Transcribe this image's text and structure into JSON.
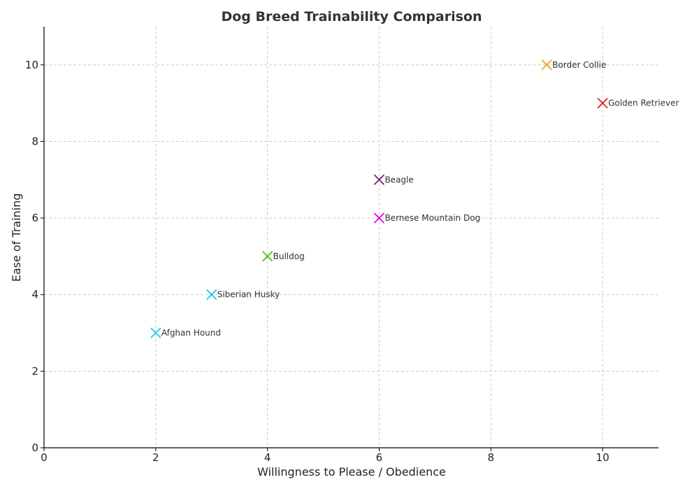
{
  "chart_data": {
    "type": "scatter",
    "title": "Dog Breed Trainability Comparison",
    "xlabel": "Willingness to Please / Obedience",
    "ylabel": "Ease of Training",
    "xlim": [
      0,
      11
    ],
    "ylim": [
      0,
      11
    ],
    "xticks": [
      0,
      2,
      4,
      6,
      8,
      10
    ],
    "yticks": [
      0,
      2,
      4,
      6,
      8,
      10
    ],
    "grid": true,
    "marker": "x",
    "points": [
      {
        "label": "Border Collie",
        "x": 9,
        "y": 10,
        "color": "#f5a623"
      },
      {
        "label": "Golden Retriever",
        "x": 10,
        "y": 9,
        "color": "#e31a1c"
      },
      {
        "label": "Beagle",
        "x": 6,
        "y": 7,
        "color": "#7b1f7b"
      },
      {
        "label": "Bernese Mountain Dog",
        "x": 6,
        "y": 6,
        "color": "#e600e6"
      },
      {
        "label": "Bulldog",
        "x": 4,
        "y": 5,
        "color": "#44c21b"
      },
      {
        "label": "Siberian Husky",
        "x": 3,
        "y": 4,
        "color": "#17c5e6"
      },
      {
        "label": "Afghan Hound",
        "x": 2,
        "y": 3,
        "color": "#17d0e6"
      }
    ]
  }
}
